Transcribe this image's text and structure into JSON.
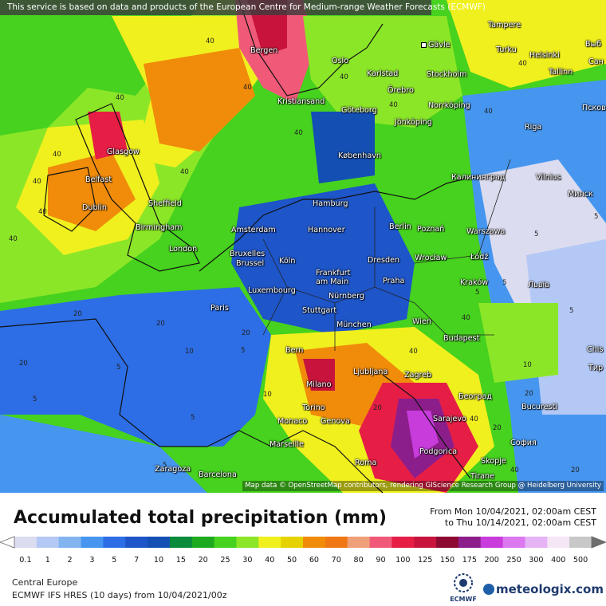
{
  "banner": "This service is based on data and products of the European Centre for Medium-range Weather Forecasts (ECMWF)",
  "attribution": "Map data © OpenStreetMap contributors, rendering GIScience Research Group @ Heidelberg University",
  "title": "Accumulated total precipitation (mm)",
  "date_range": {
    "from": "From Mon 10/04/2021, 02:00am CEST",
    "to": "to Thu 10/14/2021, 02:00am CEST"
  },
  "legend": {
    "labels": [
      "0.1",
      "1",
      "2",
      "3",
      "5",
      "7",
      "10",
      "15",
      "20",
      "25",
      "30",
      "40",
      "50",
      "60",
      "70",
      "80",
      "90",
      "100",
      "125",
      "150",
      "175",
      "200",
      "250",
      "300",
      "400",
      "500"
    ],
    "colors": [
      "#dcdcf0",
      "#b4c8f5",
      "#82b4f0",
      "#4696f0",
      "#2d6ee6",
      "#1e55c8",
      "#1450b4",
      "#0a8c3c",
      "#1eaa1e",
      "#46d21e",
      "#8ce628",
      "#f0f01e",
      "#e6d200",
      "#f08c0a",
      "#f07814",
      "#f0a078",
      "#f05a78",
      "#e61e46",
      "#c8143c",
      "#8c0a32",
      "#8c1e8c",
      "#c83cdc",
      "#dc78f0",
      "#e6b4f5",
      "#f5e6f5",
      "#c8c8c8"
    ]
  },
  "footer": {
    "region": "Central Europe",
    "model": "ECMWF IFS HRES (10 days) from 10/04/2021/00z"
  },
  "logos": {
    "ecmwf": "ECMWF",
    "meteologix": "meteologix.com"
  },
  "cities": [
    {
      "name": "Tampere"
    },
    {
      "name": "Gävle"
    },
    {
      "name": "Turku"
    },
    {
      "name": "Helsinki"
    },
    {
      "name": "Выб"
    },
    {
      "name": "Сан"
    },
    {
      "name": "Bergen"
    },
    {
      "name": "Oslo"
    },
    {
      "name": "Karlstad"
    },
    {
      "name": "Stockholm"
    },
    {
      "name": "Tallinn"
    },
    {
      "name": "Örebro"
    },
    {
      "name": "Kristiansand"
    },
    {
      "name": "Norrköping"
    },
    {
      "name": "Göteborg"
    },
    {
      "name": "Jönköping"
    },
    {
      "name": "Псков"
    },
    {
      "name": "Riga"
    },
    {
      "name": "Glasgow"
    },
    {
      "name": "København"
    },
    {
      "name": "Калининград"
    },
    {
      "name": "Vilnius"
    },
    {
      "name": "Belfast"
    },
    {
      "name": "Минск"
    },
    {
      "name": "Dublin"
    },
    {
      "name": "Sheffield"
    },
    {
      "name": "Hamburg"
    },
    {
      "name": "Birmingham"
    },
    {
      "name": "Amsterdam"
    },
    {
      "name": "Hannover"
    },
    {
      "name": "Berlin"
    },
    {
      "name": "Poznań"
    },
    {
      "name": "Warszawa"
    },
    {
      "name": "London"
    },
    {
      "name": "Bruxelles"
    },
    {
      "name": "Brussel"
    },
    {
      "name": "Köln"
    },
    {
      "name": "Wrocław"
    },
    {
      "name": "Łódź"
    },
    {
      "name": "Frankfurt"
    },
    {
      "name": "am Main"
    },
    {
      "name": "Dresden"
    },
    {
      "name": "Praha"
    },
    {
      "name": "Kraków"
    },
    {
      "name": "Львів"
    },
    {
      "name": "Luxembourg"
    },
    {
      "name": "Nürnberg"
    },
    {
      "name": "Paris"
    },
    {
      "name": "Stuttgart"
    },
    {
      "name": "München"
    },
    {
      "name": "Wien"
    },
    {
      "name": "Budapest"
    },
    {
      "name": "Bern"
    },
    {
      "name": "Chis"
    },
    {
      "name": "Tир"
    },
    {
      "name": "Ljubljana"
    },
    {
      "name": "Zagreb"
    },
    {
      "name": "Milano"
    },
    {
      "name": "Београд"
    },
    {
      "name": "Torino"
    },
    {
      "name": "Bucuresti"
    },
    {
      "name": "Monaco"
    },
    {
      "name": "Genova"
    },
    {
      "name": "Sarajevo"
    },
    {
      "name": "Marseille"
    },
    {
      "name": "София"
    },
    {
      "name": "Podgorica"
    },
    {
      "name": "Zaragoza"
    },
    {
      "name": "Roma"
    },
    {
      "name": "Skopje"
    },
    {
      "name": "Barcelona"
    },
    {
      "name": "Tirane"
    }
  ],
  "contour_values": [
    "40",
    "40",
    "40",
    "40",
    "40",
    "40",
    "40",
    "40",
    "40",
    "20",
    "20",
    "20",
    "20",
    "20",
    "20",
    "20",
    "20",
    "10",
    "10",
    "10",
    "5",
    "5",
    "5",
    "5",
    "5",
    "5",
    "5",
    "5",
    "5",
    "5",
    "40",
    "40",
    "40",
    "40",
    "40",
    "40",
    "40",
    "40"
  ]
}
